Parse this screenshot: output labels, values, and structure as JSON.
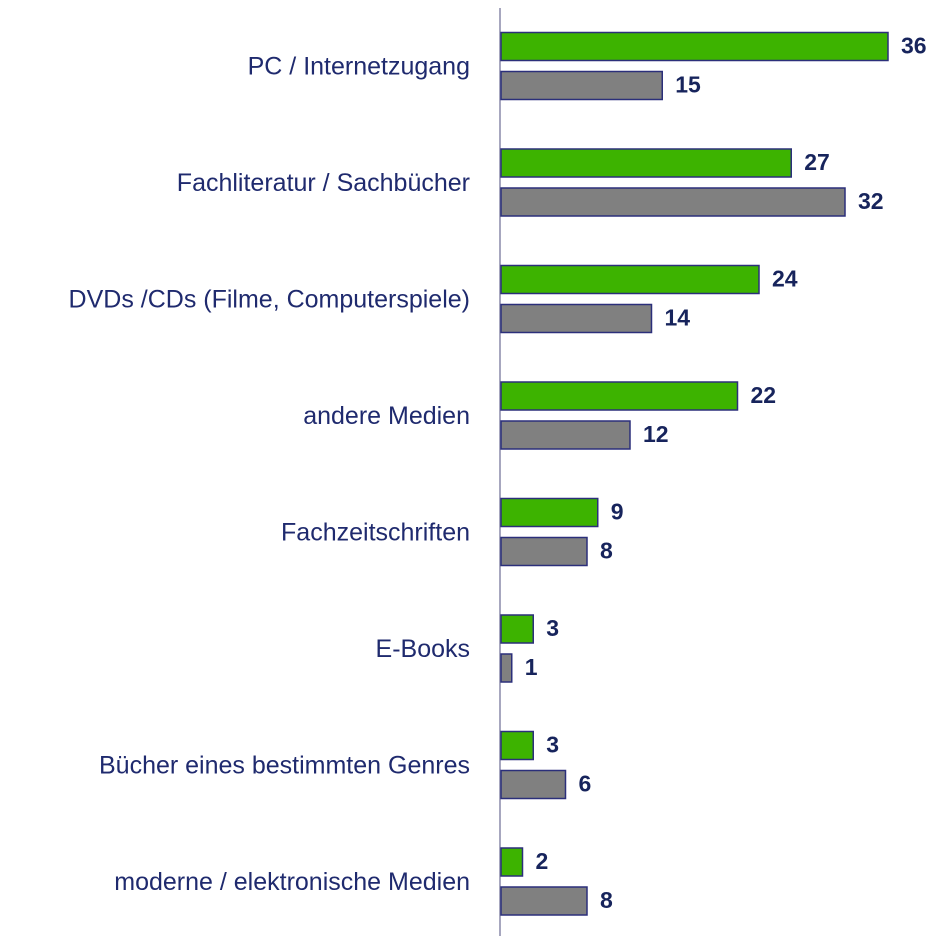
{
  "chart_data": {
    "type": "bar",
    "orientation": "horizontal",
    "categories": [
      "PC / Internetzugang",
      "Fachliteratur / Sachbücher",
      "DVDs /CDs (Filme, Computerspiele)",
      "andere Medien",
      "Fachzeitschriften",
      "E-Books",
      "Bücher eines bestimmten Genres",
      "moderne / elektronische Medien"
    ],
    "series": [
      {
        "color": "#3db300",
        "values": [
          36,
          27,
          24,
          22,
          9,
          3,
          3,
          2
        ]
      },
      {
        "color": "#808080",
        "values": [
          15,
          32,
          14,
          12,
          8,
          1,
          6,
          8
        ]
      }
    ],
    "xlim": [
      0,
      40
    ]
  }
}
